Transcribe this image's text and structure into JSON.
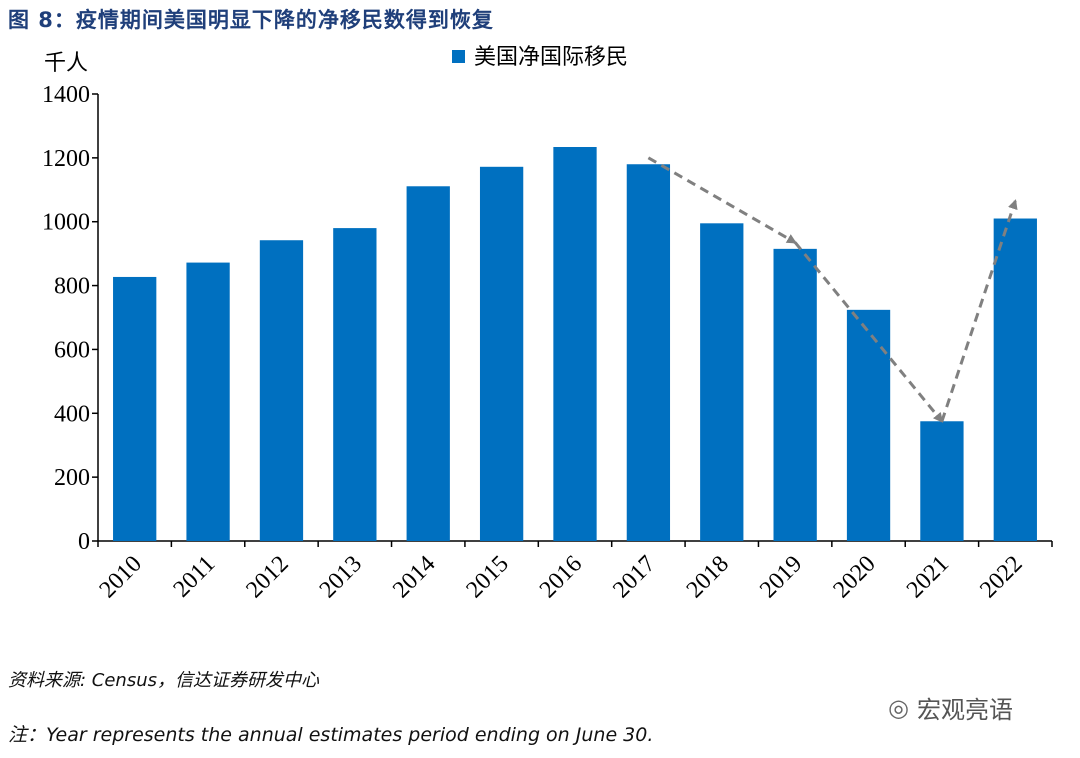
{
  "title": "图 8：疫情期间美国明显下降的净移民数得到恢复",
  "source": "资料来源: Census，信达证券研发中心",
  "note": "注：Year represents the annual estimates period ending on June 30.",
  "watermark": {
    "text": "宏观亮语",
    "icon": "wechat-icon"
  },
  "colors": {
    "bar": "#0070C0",
    "arrow": "#808080",
    "title": "#1f3f7a"
  },
  "chart_data": {
    "type": "bar",
    "unit_label": "千人",
    "categories": [
      "2010",
      "2011",
      "2012",
      "2013",
      "2014",
      "2015",
      "2016",
      "2017",
      "2018",
      "2019",
      "2020",
      "2021",
      "2022"
    ],
    "series": [
      {
        "name": "美国净国际移民",
        "values": [
          827,
          872,
          942,
          980,
          1111,
          1172,
          1234,
          1180,
          995,
          915,
          724,
          375,
          1010
        ]
      }
    ],
    "ylim": [
      0,
      1400
    ],
    "yticks": [
      0,
      200,
      400,
      600,
      800,
      1000,
      1200,
      1400
    ],
    "legend_position": "top-center",
    "grid": false,
    "annotations": [
      {
        "type": "dashed-arrow",
        "from": [
          "2017",
          1200
        ],
        "to": [
          "2019",
          935
        ]
      },
      {
        "type": "dashed-arrow",
        "from": [
          "2019",
          935
        ],
        "to": [
          "2021",
          375
        ]
      },
      {
        "type": "dashed-arrow",
        "from": [
          "2021",
          375
        ],
        "to": [
          "2022",
          1065
        ]
      }
    ]
  }
}
